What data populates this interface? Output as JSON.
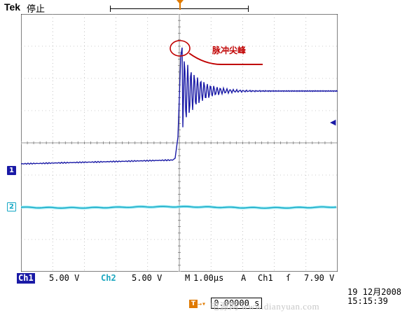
{
  "header": {
    "brand": "Tek",
    "run_state": "停止"
  },
  "trigger": {
    "marker_label": "T",
    "level_indicator": "◀"
  },
  "channels": {
    "ch1_marker": "1",
    "ch2_marker": "2"
  },
  "annotation": {
    "label": "脉冲尖峰"
  },
  "status": {
    "ch1_label": "Ch1",
    "ch1_scale": "5.00 V",
    "ch2_label": "Ch2",
    "ch2_scale": "5.00 V",
    "timebase_prefix": "M",
    "timebase": "1.00µs",
    "trigger_mode": "A",
    "trigger_source": "Ch1",
    "trigger_slope": "ſ",
    "trigger_level": "7.90 V"
  },
  "footer": {
    "date": "19 12月2008",
    "time": "15:15:39",
    "offset_icon": "T",
    "offset_arrow": "→▾",
    "offset_value": "0.00000",
    "offset_unit": "s",
    "watermark": "电源网 www.dianyuan.com"
  },
  "colors": {
    "ch1": "#1a1aa6",
    "ch2": "#14a7c4",
    "trigger": "#e07a00",
    "annotation": "#c00000"
  }
}
